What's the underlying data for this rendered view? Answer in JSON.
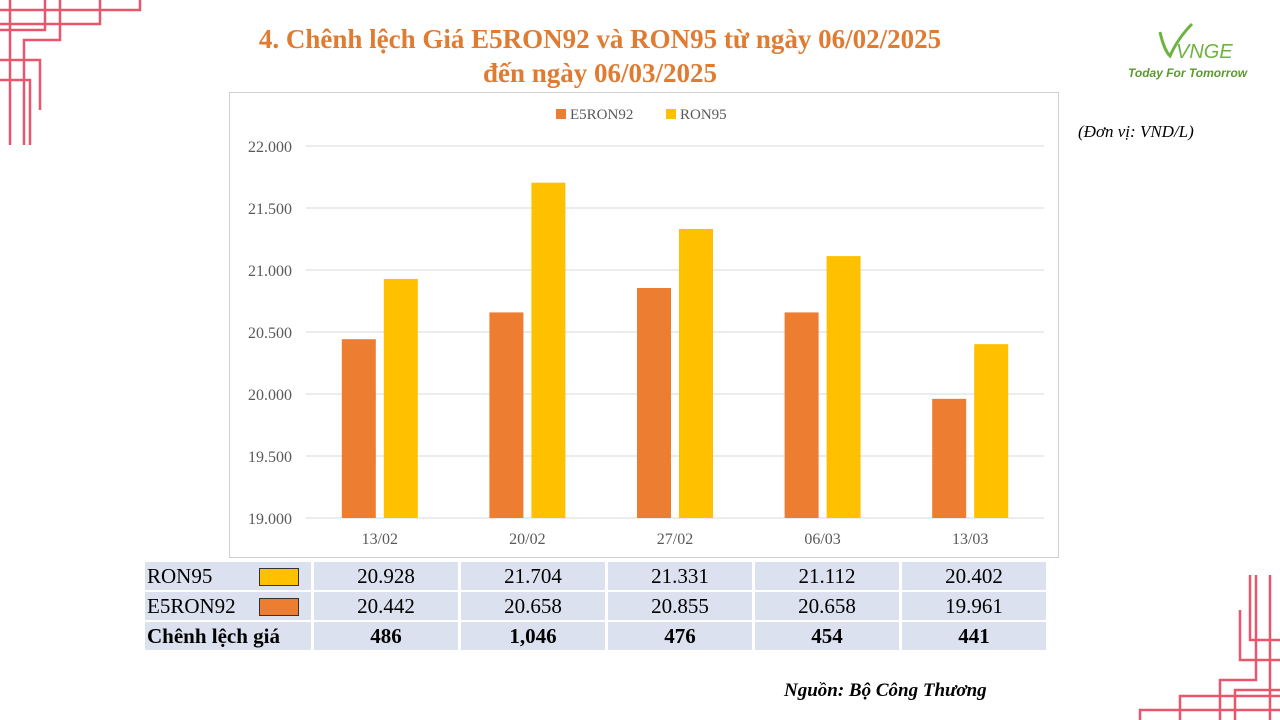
{
  "title": {
    "line1": "4. Chênh lệch Giá E5RON92 và RON95  từ ngày 06/02/2025",
    "line2": "đến ngày 06/03/2025"
  },
  "logo": {
    "name": "VNGE",
    "tagline": "Today For Tomorrow"
  },
  "unit": "(Đơn vị: VND/L)",
  "source": "Nguồn: Bộ Công Thương",
  "colors": {
    "e5ron92": "#ED7D31",
    "ron95": "#FFC000",
    "title": "#E07B32",
    "table_bg": "#DCE1F0",
    "deco": "#E8566B"
  },
  "chart_data": {
    "type": "bar",
    "categories": [
      "13/02",
      "20/02",
      "27/02",
      "06/03",
      "13/03"
    ],
    "series": [
      {
        "name": "E5RON92",
        "values": [
          20442,
          20658,
          20855,
          20658,
          19961
        ]
      },
      {
        "name": "RON95",
        "values": [
          20928,
          21704,
          21331,
          21112,
          20402
        ]
      }
    ],
    "ylim": [
      19000,
      22000
    ],
    "yticks": [
      "19.000",
      "19.500",
      "20.000",
      "20.500",
      "21.000",
      "21.500",
      "22.000"
    ],
    "legend_position": "top",
    "grid": true
  },
  "table": {
    "rows": [
      {
        "label": "RON95",
        "values": [
          "20.928",
          "21.704",
          "21.331",
          "21.112",
          "20.402"
        ]
      },
      {
        "label": "E5RON92",
        "values": [
          "20.442",
          "20.658",
          "20.855",
          "20.658",
          "19.961"
        ]
      },
      {
        "label": "Chênh lệch giá",
        "values": [
          "486",
          "1,046",
          "476",
          "454",
          "441"
        ]
      }
    ]
  }
}
